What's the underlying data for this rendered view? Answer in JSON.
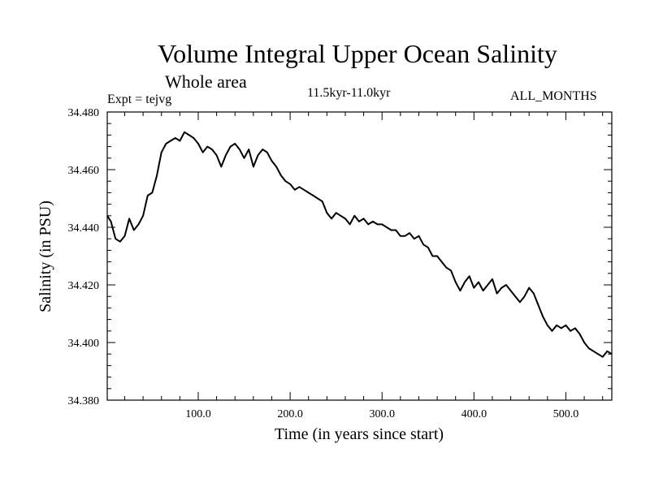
{
  "chart_data": {
    "type": "line",
    "title": "Volume Integral Upper Ocean Salinity",
    "subtitle": "Whole area",
    "experiment_label": "Expt = tejvg",
    "period_label": "11.5kyr-11.0kyr",
    "months_label": "ALL_MONTHS",
    "xlabel": "Time (in years since start)",
    "ylabel": "Salinity (in PSU)",
    "xlim": [
      1,
      550
    ],
    "ylim": [
      34.38,
      34.48
    ],
    "x_ticks": [
      100,
      200,
      300,
      400,
      500
    ],
    "x_tick_labels": [
      "100.0",
      "200.0",
      "300.0",
      "400.0",
      "500.0"
    ],
    "y_ticks": [
      34.38,
      34.4,
      34.42,
      34.44,
      34.46,
      34.48
    ],
    "y_tick_labels": [
      "34.380",
      "34.400",
      "34.420",
      "34.440",
      "34.460",
      "34.480"
    ],
    "series": [
      {
        "name": "salinity",
        "color": "#000000",
        "x": [
          1,
          5,
          10,
          15,
          20,
          25,
          30,
          35,
          40,
          45,
          50,
          55,
          60,
          65,
          70,
          75,
          80,
          85,
          90,
          95,
          100,
          105,
          110,
          115,
          120,
          125,
          130,
          135,
          140,
          145,
          150,
          155,
          160,
          165,
          170,
          175,
          180,
          185,
          190,
          195,
          200,
          205,
          210,
          215,
          220,
          225,
          230,
          235,
          240,
          245,
          250,
          255,
          260,
          265,
          270,
          275,
          280,
          285,
          290,
          295,
          300,
          305,
          310,
          315,
          320,
          325,
          330,
          335,
          340,
          345,
          350,
          355,
          360,
          365,
          370,
          375,
          380,
          385,
          390,
          395,
          400,
          405,
          410,
          415,
          420,
          425,
          430,
          435,
          440,
          445,
          450,
          455,
          460,
          465,
          470,
          475,
          480,
          485,
          490,
          495,
          500,
          505,
          510,
          515,
          520,
          525,
          530,
          535,
          540,
          545,
          550
        ],
        "y": [
          34.444,
          34.442,
          34.436,
          34.435,
          34.437,
          34.443,
          34.439,
          34.441,
          34.444,
          34.451,
          34.452,
          34.458,
          34.466,
          34.469,
          34.47,
          34.471,
          34.47,
          34.473,
          34.472,
          34.471,
          34.469,
          34.466,
          34.468,
          34.467,
          34.465,
          34.461,
          34.465,
          34.468,
          34.469,
          34.467,
          34.464,
          34.467,
          34.461,
          34.465,
          34.467,
          34.466,
          34.463,
          34.461,
          34.458,
          34.456,
          34.455,
          34.453,
          34.454,
          34.453,
          34.452,
          34.451,
          34.45,
          34.449,
          34.445,
          34.443,
          34.445,
          34.444,
          34.443,
          34.441,
          34.444,
          34.442,
          34.443,
          34.441,
          34.442,
          34.441,
          34.441,
          34.44,
          34.439,
          34.439,
          34.437,
          34.437,
          34.438,
          34.436,
          34.437,
          34.434,
          34.433,
          34.43,
          34.43,
          34.428,
          34.426,
          34.425,
          34.421,
          34.418,
          34.421,
          34.423,
          34.419,
          34.421,
          34.418,
          34.42,
          34.422,
          34.417,
          34.419,
          34.42,
          34.418,
          34.416,
          34.414,
          34.416,
          34.419,
          34.417,
          34.413,
          34.409,
          34.406,
          34.404,
          34.406,
          34.405,
          34.406,
          34.404,
          34.405,
          34.403,
          34.4,
          34.398,
          34.397,
          34.396,
          34.395,
          34.397,
          34.396
        ]
      }
    ]
  }
}
